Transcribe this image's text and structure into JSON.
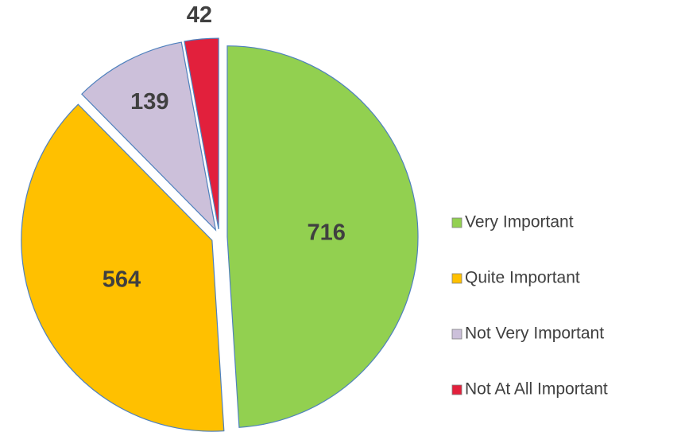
{
  "chart_data": {
    "type": "pie",
    "categories": [
      "Very Important",
      "Quite Important",
      "Not Very Important",
      "Not At All Important"
    ],
    "values": [
      716,
      564,
      139,
      42
    ],
    "colors": [
      "#92d050",
      "#ffc000",
      "#ccc0da",
      "#e2203c"
    ],
    "legend": "right"
  }
}
